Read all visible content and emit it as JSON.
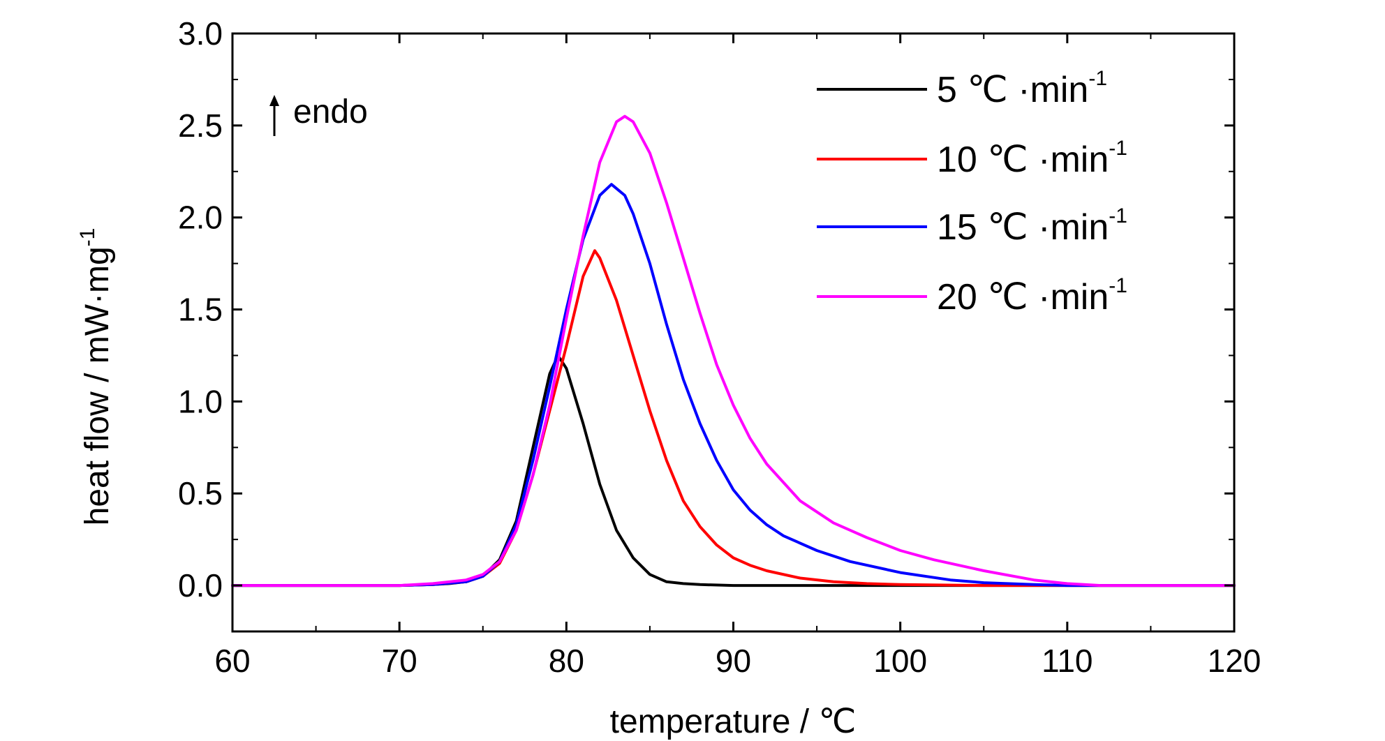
{
  "chart_data": {
    "type": "line",
    "title": "",
    "xlabel": "temperature / ℃",
    "ylabel": "heat flow / mW·mg",
    "ylabel_sup": "-1",
    "xlim": [
      60,
      120
    ],
    "ylim": [
      -0.25,
      3.0
    ],
    "x_ticks": [
      60,
      70,
      80,
      90,
      100,
      110,
      120
    ],
    "x_tick_labels": [
      "60",
      "70",
      "80",
      "90",
      "100",
      "110",
      "120"
    ],
    "y_ticks": [
      0.0,
      0.5,
      1.0,
      1.5,
      2.0,
      2.5,
      3.0
    ],
    "y_tick_labels": [
      "0.0",
      "0.5",
      "1.0",
      "1.5",
      "2.0",
      "2.5",
      "3.0"
    ],
    "grid": false,
    "legend_position": "top-right",
    "annotation": "endo",
    "series": [
      {
        "name": "5 ℃ ·min",
        "name_sup": "-1",
        "color": "#000000",
        "x": [
          60,
          70,
          72,
          73,
          74,
          75,
          76,
          77,
          78,
          79,
          79.5,
          80,
          81,
          82,
          83,
          84,
          85,
          86,
          87,
          88,
          90,
          95,
          100,
          110,
          120
        ],
        "y": [
          0.0,
          0.0,
          0.005,
          0.01,
          0.02,
          0.05,
          0.14,
          0.35,
          0.75,
          1.15,
          1.25,
          1.18,
          0.88,
          0.55,
          0.3,
          0.15,
          0.06,
          0.02,
          0.01,
          0.005,
          0.0,
          0.0,
          0.0,
          0.0,
          0.0
        ]
      },
      {
        "name": "10 ℃ ·min",
        "name_sup": "-1",
        "color": "#ff0000",
        "x": [
          60,
          70,
          72,
          74,
          75,
          76,
          77,
          78,
          79,
          80,
          81,
          81.7,
          82,
          83,
          84,
          85,
          86,
          87,
          88,
          89,
          90,
          91,
          92,
          94,
          96,
          98,
          100,
          105,
          110,
          120
        ],
        "y": [
          0.0,
          0.0,
          0.005,
          0.02,
          0.05,
          0.12,
          0.3,
          0.6,
          0.95,
          1.3,
          1.68,
          1.82,
          1.78,
          1.55,
          1.25,
          0.95,
          0.68,
          0.46,
          0.32,
          0.22,
          0.15,
          0.11,
          0.08,
          0.04,
          0.02,
          0.01,
          0.005,
          0.0,
          0.0,
          0.0
        ]
      },
      {
        "name": "15 ℃ ·min",
        "name_sup": "-1",
        "color": "#0000ff",
        "x": [
          60,
          70,
          72,
          74,
          75,
          76,
          77,
          78,
          79,
          80,
          81,
          82,
          82.7,
          83.5,
          84,
          85,
          86,
          87,
          88,
          89,
          90,
          91,
          92,
          93,
          95,
          97,
          100,
          103,
          105,
          108,
          110,
          120
        ],
        "y": [
          0.0,
          0.0,
          0.005,
          0.02,
          0.05,
          0.13,
          0.33,
          0.68,
          1.08,
          1.5,
          1.88,
          2.12,
          2.18,
          2.12,
          2.02,
          1.75,
          1.42,
          1.12,
          0.88,
          0.68,
          0.52,
          0.41,
          0.33,
          0.27,
          0.19,
          0.13,
          0.07,
          0.03,
          0.015,
          0.005,
          0.0,
          0.0
        ]
      },
      {
        "name": "20 ℃ ·min",
        "name_sup": "-1",
        "color": "#ff00ff",
        "x": [
          60,
          70,
          72,
          74,
          75,
          76,
          77,
          78,
          79,
          80,
          81,
          82,
          83,
          83.5,
          84,
          85,
          86,
          87,
          88,
          89,
          90,
          91,
          92,
          94,
          96,
          98,
          100,
          102,
          105,
          108,
          110,
          112,
          120
        ],
        "y": [
          0.0,
          0.0,
          0.01,
          0.03,
          0.06,
          0.13,
          0.3,
          0.6,
          0.98,
          1.45,
          1.9,
          2.3,
          2.52,
          2.55,
          2.52,
          2.35,
          2.08,
          1.78,
          1.48,
          1.2,
          0.98,
          0.8,
          0.66,
          0.46,
          0.34,
          0.26,
          0.19,
          0.14,
          0.08,
          0.03,
          0.01,
          0.0,
          0.0
        ]
      }
    ]
  }
}
